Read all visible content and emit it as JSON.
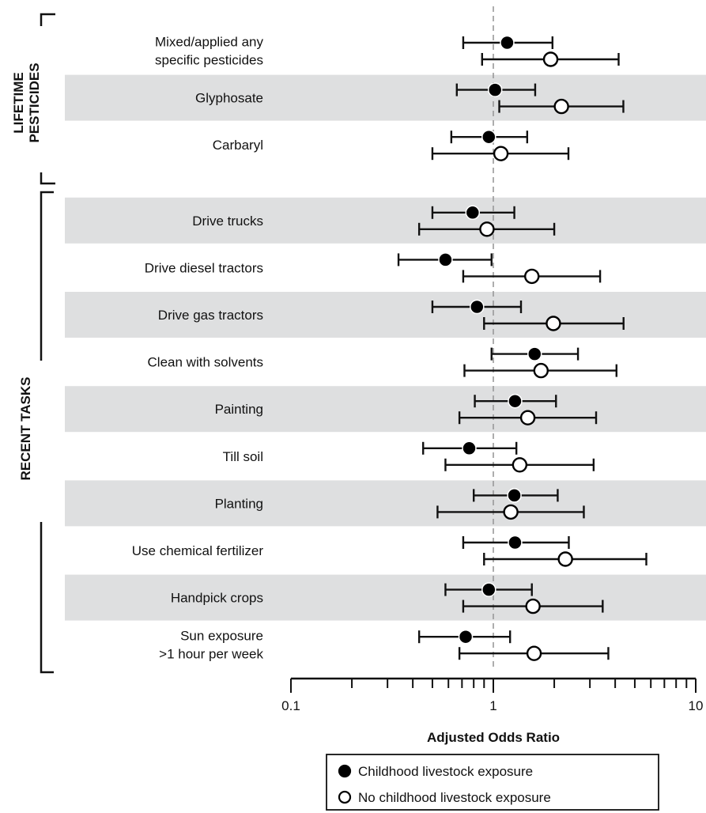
{
  "chart_data": {
    "type": "scatter",
    "subtype": "forest-plot",
    "xscale": "log",
    "xlim": [
      0.1,
      10
    ],
    "xlabel": "Adjusted Odds Ratio",
    "xticks": [
      0.1,
      1,
      10
    ],
    "xtick_labels": [
      "0.1",
      "1",
      "10"
    ],
    "reference_line": 1,
    "groups": [
      {
        "label": "LIFETIME PESTICIDES",
        "label_lines": [
          "LIFETIME",
          "PESTICIDES"
        ],
        "rows": [
          0,
          2
        ]
      },
      {
        "label": "RECENT TASKS",
        "label_lines": [
          "RECENT TASKS"
        ],
        "rows": [
          3,
          11
        ]
      }
    ],
    "rows": [
      {
        "label": [
          "Mixed/applied any",
          "specific pesticides"
        ],
        "shaded": false
      },
      {
        "label": [
          "Glyphosate"
        ],
        "shaded": true
      },
      {
        "label": [
          "Carbaryl"
        ],
        "shaded": false
      },
      {
        "label": [
          "Drive trucks"
        ],
        "shaded": true
      },
      {
        "label": [
          "Drive diesel tractors"
        ],
        "shaded": false
      },
      {
        "label": [
          "Drive gas tractors"
        ],
        "shaded": true
      },
      {
        "label": [
          "Clean with solvents"
        ],
        "shaded": false
      },
      {
        "label": [
          "Painting"
        ],
        "shaded": true
      },
      {
        "label": [
          "Till soil"
        ],
        "shaded": false
      },
      {
        "label": [
          "Planting"
        ],
        "shaded": true
      },
      {
        "label": [
          "Use chemical fertilizer"
        ],
        "shaded": false
      },
      {
        "label": [
          "Handpick crops"
        ],
        "shaded": true
      },
      {
        "label": [
          "Sun exposure",
          ">1 hour per week"
        ],
        "shaded": false
      }
    ],
    "series": [
      {
        "name": "Childhood livestock exposure",
        "marker": "filled-circle",
        "color": "#000000",
        "values": [
          {
            "or": 1.17,
            "lo": 0.71,
            "hi": 1.96
          },
          {
            "or": 1.02,
            "lo": 0.66,
            "hi": 1.61
          },
          {
            "or": 0.95,
            "lo": 0.62,
            "hi": 1.47
          },
          {
            "or": 0.79,
            "lo": 0.5,
            "hi": 1.27
          },
          {
            "or": 0.58,
            "lo": 0.34,
            "hi": 0.98
          },
          {
            "or": 0.83,
            "lo": 0.5,
            "hi": 1.37
          },
          {
            "or": 1.6,
            "lo": 0.98,
            "hi": 2.62
          },
          {
            "or": 1.28,
            "lo": 0.81,
            "hi": 2.04
          },
          {
            "or": 0.76,
            "lo": 0.45,
            "hi": 1.3
          },
          {
            "or": 1.27,
            "lo": 0.8,
            "hi": 2.08
          },
          {
            "or": 1.28,
            "lo": 0.71,
            "hi": 2.36
          },
          {
            "or": 0.95,
            "lo": 0.58,
            "hi": 1.55
          },
          {
            "or": 0.73,
            "lo": 0.43,
            "hi": 1.21
          }
        ]
      },
      {
        "name": "No childhood livestock exposure",
        "marker": "open-circle",
        "color": "#000000",
        "values": [
          {
            "or": 1.92,
            "lo": 0.88,
            "hi": 4.16
          },
          {
            "or": 2.17,
            "lo": 1.07,
            "hi": 4.39
          },
          {
            "or": 1.09,
            "lo": 0.5,
            "hi": 2.35
          },
          {
            "or": 0.93,
            "lo": 0.43,
            "hi": 2.0
          },
          {
            "or": 1.55,
            "lo": 0.71,
            "hi": 3.37
          },
          {
            "or": 1.98,
            "lo": 0.9,
            "hi": 4.4
          },
          {
            "or": 1.72,
            "lo": 0.72,
            "hi": 4.06
          },
          {
            "or": 1.48,
            "lo": 0.68,
            "hi": 3.22
          },
          {
            "or": 1.35,
            "lo": 0.58,
            "hi": 3.13
          },
          {
            "or": 1.22,
            "lo": 0.53,
            "hi": 2.8
          },
          {
            "or": 2.27,
            "lo": 0.9,
            "hi": 5.7
          },
          {
            "or": 1.57,
            "lo": 0.71,
            "hi": 3.47
          },
          {
            "or": 1.59,
            "lo": 0.68,
            "hi": 3.7
          }
        ]
      }
    ],
    "legend": {
      "placement": "bottom",
      "boxed": true
    }
  }
}
